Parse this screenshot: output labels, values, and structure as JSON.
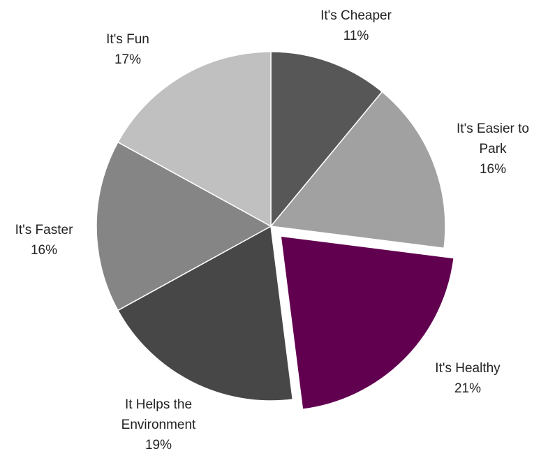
{
  "chart_data": {
    "type": "pie",
    "title": "",
    "slices": [
      {
        "label": "It's Cheaper",
        "label_lines": [
          "It's Cheaper"
        ],
        "value": 11,
        "value_label": "11%",
        "color": "#575757",
        "exploded": false
      },
      {
        "label": "It's Easier to Park",
        "label_lines": [
          "It's Easier to",
          "Park"
        ],
        "value": 16,
        "value_label": "16%",
        "color": "#a1a1a1",
        "exploded": false
      },
      {
        "label": "It's Healthy",
        "label_lines": [
          "It's Healthy"
        ],
        "value": 21,
        "value_label": "21%",
        "color": "#620050",
        "exploded": true
      },
      {
        "label": "It Helps the Environment",
        "label_lines": [
          "It Helps the",
          "Environment"
        ],
        "value": 19,
        "value_label": "19%",
        "color": "#474747",
        "exploded": false
      },
      {
        "label": "It's Faster",
        "label_lines": [
          "It's Faster"
        ],
        "value": 16,
        "value_label": "16%",
        "color": "#858585",
        "exploded": false
      },
      {
        "label": "It's Fun",
        "label_lines": [
          "It's Fun"
        ],
        "value": 17,
        "value_label": "17%",
        "color": "#c0c0c0",
        "exploded": false
      }
    ]
  }
}
